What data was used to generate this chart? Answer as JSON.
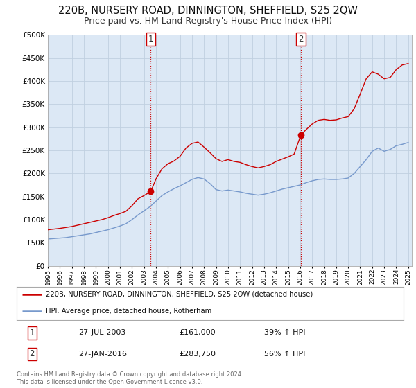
{
  "title": "220B, NURSERY ROAD, DINNINGTON, SHEFFIELD, S25 2QW",
  "subtitle": "Price paid vs. HM Land Registry's House Price Index (HPI)",
  "ylim": [
    0,
    500000
  ],
  "xlim_start": 1995.0,
  "xlim_end": 2025.3,
  "yticks": [
    0,
    50000,
    100000,
    150000,
    200000,
    250000,
    300000,
    350000,
    400000,
    450000,
    500000
  ],
  "ytick_labels": [
    "£0",
    "£50K",
    "£100K",
    "£150K",
    "£200K",
    "£250K",
    "£300K",
    "£350K",
    "£400K",
    "£450K",
    "£500K"
  ],
  "red_line_color": "#cc0000",
  "blue_line_color": "#7799cc",
  "sale1_date": 2003.57,
  "sale1_value": 161000,
  "sale2_date": 2016.07,
  "sale2_value": 283750,
  "vline_color": "#cc0000",
  "dot_color": "#cc0000",
  "legend_label_red": "220B, NURSERY ROAD, DINNINGTON, SHEFFIELD, S25 2QW (detached house)",
  "legend_label_blue": "HPI: Average price, detached house, Rotherham",
  "info1_date": "27-JUL-2003",
  "info1_price": "£161,000",
  "info1_hpi": "39% ↑ HPI",
  "info2_date": "27-JAN-2016",
  "info2_price": "£283,750",
  "info2_hpi": "56% ↑ HPI",
  "footnote": "Contains HM Land Registry data © Crown copyright and database right 2024.\nThis data is licensed under the Open Government Licence v3.0.",
  "plot_bg_color": "#dce8f5",
  "grid_color": "#c0d0e0",
  "fig_bg_color": "#ffffff",
  "title_fontsize": 10.5,
  "subtitle_fontsize": 9
}
